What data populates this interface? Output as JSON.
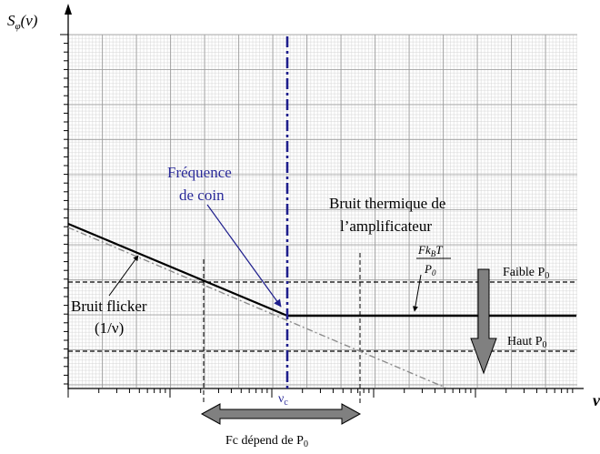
{
  "axes": {
    "y_symbol": "S",
    "y_subscript": "φ",
    "y_arg": "(ν)",
    "x_symbol": "ν"
  },
  "annotations": {
    "corner_freq_line1": "Fréquence",
    "corner_freq_line2": "de coin",
    "thermal_line1": "Bruit thermique de",
    "thermal_line2": "l’amplificateur",
    "formula_num_F": "Fk",
    "formula_num_sub": "B",
    "formula_num_T": "T",
    "formula_den": "P",
    "formula_den_sub": "0",
    "low_p0": "Faible P",
    "low_p0_sub": "0",
    "high_p0": "Haut P",
    "high_p0_sub": "0",
    "flicker_line1": "Bruit flicker",
    "flicker_line2": "(1/ν)",
    "nu_c": "ν",
    "nu_c_sub": "c",
    "fc_label": "Fc dépend de P",
    "fc_label_sub": "0"
  },
  "colors": {
    "corner_line": "#1e1e8c",
    "corner_text": "#2b2b9a",
    "arrow_fill": "#808080",
    "extension_line": "#8c8c8c"
  }
}
